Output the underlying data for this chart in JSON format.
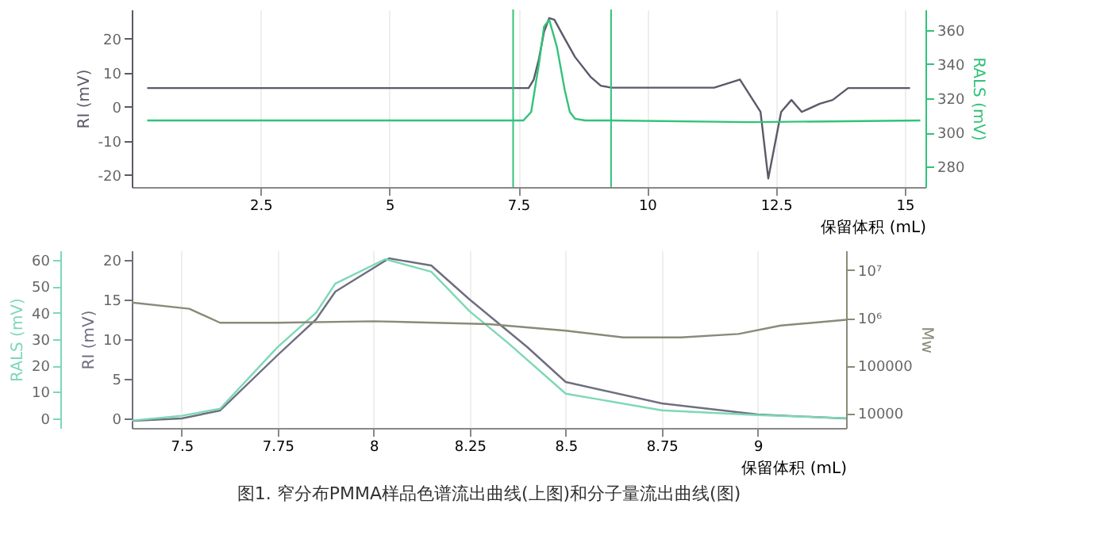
{
  "chart_data": [
    {
      "type": "line",
      "xlabel": "保留体积 (mL)",
      "ylabel": "RI (mV)",
      "y2label": "RALS (mV)",
      "xlim": [
        0,
        15.4
      ],
      "xticks": [
        2.5,
        5,
        7.5,
        10,
        12.5,
        15
      ],
      "ylim": [
        -23.5,
        28.5
      ],
      "yticks": [
        -20,
        -10,
        0,
        10,
        20
      ],
      "y2lim": [
        268,
        372
      ],
      "y2ticks": [
        280,
        300,
        320,
        340,
        360
      ],
      "grid": "x",
      "ref_lines": [
        {
          "axis": "x",
          "value": 7.4,
          "color": "#33c27a"
        },
        {
          "axis": "x",
          "value": 9.3,
          "color": "#33c27a"
        }
      ],
      "series": [
        {
          "color": "#5a5a6a",
          "x": [
            0.3,
            7.4,
            7.7,
            7.8,
            7.9,
            8.0,
            8.1,
            8.2,
            8.4,
            8.6,
            8.9,
            9.1,
            9.3,
            11.3,
            11.8,
            12.2,
            12.35,
            12.6,
            12.8,
            13.0,
            13.35,
            13.6,
            13.9,
            15.1
          ],
          "values": [
            5.5,
            5.5,
            5.5,
            8,
            14,
            22,
            26,
            25.5,
            20,
            14.6,
            8.8,
            6.2,
            5.6,
            5.6,
            8,
            -1.5,
            -21,
            -1.5,
            2,
            -1.5,
            0.9,
            2,
            5.5,
            5.5
          ]
        },
        {
          "color": "#33c27a",
          "axis": "y2",
          "x": [
            0.3,
            7.4,
            7.6,
            7.75,
            7.9,
            8.0,
            8.1,
            8.25,
            8.4,
            8.5,
            8.6,
            8.8,
            9.3,
            12.0,
            15.3
          ],
          "values": [
            307,
            307,
            307,
            312,
            340,
            362,
            366,
            350,
            325,
            312,
            308,
            307,
            307,
            306,
            307
          ]
        }
      ]
    },
    {
      "type": "line",
      "xlabel": "保留体积 (mL)",
      "ylabel": "RI (mV)",
      "y2label": "Mw",
      "y3label": "RALS (mV)",
      "xlim": [
        7.37,
        9.23
      ],
      "xticks": [
        7.5,
        7.75,
        8,
        8.25,
        8.5,
        8.75,
        9
      ],
      "ylim": [
        -1.2,
        21.2
      ],
      "yticks": [
        0,
        5,
        10,
        15,
        20
      ],
      "y2lim": [
        4900,
        26000000
      ],
      "y2ticks": [
        10000,
        100000,
        {
          "value": 1000000,
          "label": "10⁶"
        },
        {
          "value": 10000000,
          "label": "10⁷"
        }
      ],
      "log": "y2",
      "y3lim": [
        -3.7,
        63.6
      ],
      "y3ticks": [
        0,
        10,
        20,
        30,
        40,
        50,
        60
      ],
      "grid": "x",
      "annotations": [
        "图1. 窄分布PMMA样品色谱流出曲线(上图)和分子量流出曲线(图)"
      ],
      "series": [
        {
          "color": "#6e6e80",
          "x": [
            7.37,
            7.5,
            7.6,
            7.75,
            7.85,
            7.9,
            8.04,
            8.15,
            8.25,
            8.35,
            8.4,
            8.5,
            8.75,
            9.0,
            9.23
          ],
          "values": [
            -0.3,
            0,
            1,
            8,
            12.5,
            16,
            20.2,
            19.3,
            15,
            11,
            9,
            4.6,
            1.9,
            0.5,
            0
          ]
        },
        {
          "color": "#7dd8b5",
          "axis": "y3",
          "x": [
            7.37,
            7.5,
            7.6,
            7.75,
            7.85,
            7.9,
            8.03,
            8.15,
            8.25,
            8.35,
            8.5,
            8.75,
            9.0,
            9.23
          ],
          "values": [
            -0.9,
            0.9,
            3.6,
            27,
            40,
            51,
            60.3,
            55.5,
            40.5,
            28.5,
            9.3,
            3,
            1.2,
            0
          ]
        },
        {
          "color": "#8a8a78",
          "axis": "y2",
          "x": [
            7.37,
            7.52,
            7.6,
            7.75,
            8.0,
            8.3,
            8.5,
            8.65,
            8.8,
            8.95,
            9.06,
            9.23
          ],
          "values": [
            2100000,
            1550000,
            790000,
            790000,
            850000,
            740000,
            540000,
            390000,
            390000,
            460000,
            690000,
            910000
          ]
        }
      ]
    }
  ]
}
